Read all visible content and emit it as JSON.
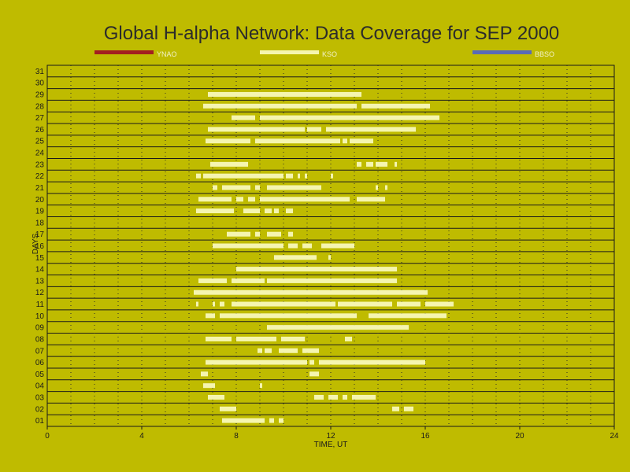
{
  "chart_data": {
    "type": "bar",
    "title": "Global H-alpha Network: Data Coverage for SEP 2000",
    "xlabel": "TIME, UT",
    "ylabel": "DAYS",
    "xlim": [
      0,
      24
    ],
    "ylim": [
      0.5,
      31.5
    ],
    "x_ticks": [
      0,
      4,
      8,
      12,
      16,
      20,
      24
    ],
    "x_minor_step": 1,
    "y_ticks": [
      "01",
      "02",
      "03",
      "04",
      "05",
      "06",
      "07",
      "08",
      "09",
      "10",
      "11",
      "12",
      "13",
      "14",
      "15",
      "16",
      "17",
      "18",
      "19",
      "20",
      "21",
      "22",
      "23",
      "24",
      "25",
      "26",
      "27",
      "28",
      "29",
      "30",
      "31"
    ],
    "grid": true,
    "colors": {
      "background": "#bfbb00",
      "axes": "#1a1a1a",
      "YNAO": "#a32020",
      "KSO": "#f5f5b0",
      "BBSO": "#5a6bb5"
    },
    "legend": [
      {
        "name": "YNAO",
        "color": "#a32020"
      },
      {
        "name": "KSO",
        "color": "#f5f5b0"
      },
      {
        "name": "BBSO",
        "color": "#5a6bb5"
      }
    ],
    "series": [
      {
        "name": "KSO",
        "coverage": [
          {
            "day": 1,
            "intervals": [
              [
                7.4,
                9.2
              ],
              [
                9.4,
                9.6
              ],
              [
                9.8,
                10.0
              ]
            ]
          },
          {
            "day": 2,
            "intervals": [
              [
                7.3,
                8.0
              ],
              [
                14.6,
                14.9
              ],
              [
                15.1,
                15.5
              ]
            ]
          },
          {
            "day": 3,
            "intervals": [
              [
                6.8,
                7.5
              ],
              [
                11.3,
                11.7
              ],
              [
                11.9,
                12.3
              ],
              [
                12.5,
                12.7
              ],
              [
                12.9,
                13.9
              ]
            ]
          },
          {
            "day": 4,
            "intervals": [
              [
                6.6,
                7.1
              ],
              [
                9.0,
                9.1
              ]
            ]
          },
          {
            "day": 5,
            "intervals": [
              [
                6.5,
                6.8
              ],
              [
                11.1,
                11.5
              ]
            ]
          },
          {
            "day": 6,
            "intervals": [
              [
                6.7,
                11.0
              ],
              [
                11.1,
                11.3
              ],
              [
                11.5,
                16.0
              ]
            ]
          },
          {
            "day": 7,
            "intervals": [
              [
                8.9,
                9.1
              ],
              [
                9.2,
                9.5
              ],
              [
                9.8,
                10.6
              ],
              [
                10.8,
                11.5
              ]
            ]
          },
          {
            "day": 8,
            "intervals": [
              [
                6.7,
                7.8
              ],
              [
                8.0,
                9.7
              ],
              [
                9.9,
                10.9
              ],
              [
                12.6,
                12.9
              ]
            ]
          },
          {
            "day": 9,
            "intervals": [
              [
                9.3,
                15.3
              ]
            ]
          },
          {
            "day": 10,
            "intervals": [
              [
                6.7,
                7.1
              ],
              [
                7.3,
                13.1
              ],
              [
                13.6,
                16.9
              ]
            ]
          },
          {
            "day": 11,
            "intervals": [
              [
                6.3,
                6.4
              ],
              [
                7.0,
                7.1
              ],
              [
                7.3,
                7.5
              ],
              [
                7.8,
                12.2
              ],
              [
                12.3,
                14.6
              ],
              [
                14.8,
                15.8
              ],
              [
                16.0,
                17.2
              ]
            ]
          },
          {
            "day": 12,
            "intervals": [
              [
                6.2,
                16.1
              ]
            ]
          },
          {
            "day": 13,
            "intervals": [
              [
                6.4,
                7.6
              ],
              [
                7.8,
                9.2
              ],
              [
                9.3,
                14.8
              ]
            ]
          },
          {
            "day": 14,
            "intervals": [
              [
                8.0,
                14.8
              ]
            ]
          },
          {
            "day": 15,
            "intervals": [
              [
                9.6,
                11.4
              ],
              [
                11.9,
                12.0
              ]
            ]
          },
          {
            "day": 16,
            "intervals": [
              [
                7.0,
                10.0
              ],
              [
                10.2,
                10.6
              ],
              [
                10.8,
                11.2
              ],
              [
                11.6,
                13.0
              ]
            ]
          },
          {
            "day": 17,
            "intervals": [
              [
                7.6,
                8.6
              ],
              [
                8.8,
                9.0
              ],
              [
                9.3,
                9.9
              ],
              [
                10.2,
                10.4
              ]
            ]
          },
          {
            "day": 19,
            "intervals": [
              [
                6.3,
                7.9
              ],
              [
                8.3,
                9.0
              ],
              [
                9.2,
                9.5
              ],
              [
                9.6,
                9.8
              ],
              [
                10.1,
                10.4
              ]
            ]
          },
          {
            "day": 20,
            "intervals": [
              [
                6.4,
                7.8
              ],
              [
                8.0,
                8.3
              ],
              [
                8.5,
                8.8
              ],
              [
                9.0,
                12.8
              ],
              [
                13.1,
                14.3
              ]
            ]
          },
          {
            "day": 21,
            "intervals": [
              [
                7.0,
                7.2
              ],
              [
                7.4,
                8.6
              ],
              [
                8.8,
                9.0
              ],
              [
                9.3,
                11.6
              ],
              [
                13.9,
                14.0
              ],
              [
                14.3,
                14.4
              ]
            ]
          },
          {
            "day": 22,
            "intervals": [
              [
                6.3,
                6.5
              ],
              [
                6.6,
                10.0
              ],
              [
                10.1,
                10.4
              ],
              [
                10.6,
                10.7
              ],
              [
                10.9,
                11.0
              ],
              [
                12.0,
                12.1
              ]
            ]
          },
          {
            "day": 23,
            "intervals": [
              [
                6.9,
                8.5
              ],
              [
                13.1,
                13.3
              ],
              [
                13.5,
                13.8
              ],
              [
                13.9,
                14.4
              ],
              [
                14.7,
                14.8
              ]
            ]
          },
          {
            "day": 25,
            "intervals": [
              [
                6.7,
                8.6
              ],
              [
                8.8,
                12.4
              ],
              [
                12.5,
                12.7
              ],
              [
                12.8,
                13.8
              ]
            ]
          },
          {
            "day": 26,
            "intervals": [
              [
                6.8,
                10.9
              ],
              [
                11.0,
                11.6
              ],
              [
                11.8,
                15.6
              ]
            ]
          },
          {
            "day": 27,
            "intervals": [
              [
                7.8,
                8.8
              ],
              [
                9.0,
                16.6
              ]
            ]
          },
          {
            "day": 28,
            "intervals": [
              [
                6.6,
                13.1
              ],
              [
                13.3,
                16.2
              ]
            ]
          },
          {
            "day": 29,
            "intervals": [
              [
                6.8,
                13.3
              ]
            ]
          }
        ]
      },
      {
        "name": "YNAO",
        "coverage": []
      },
      {
        "name": "BBSO",
        "coverage": []
      }
    ]
  }
}
